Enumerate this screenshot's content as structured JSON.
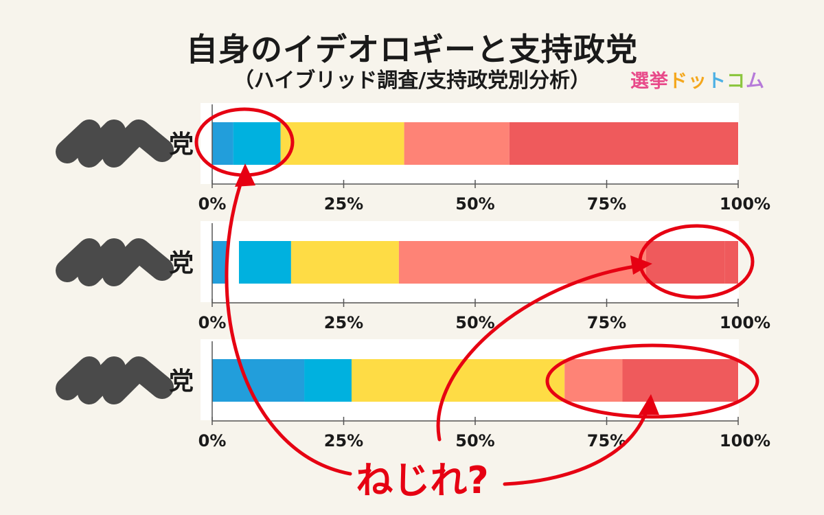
{
  "title": "自身のイデオロギーと支持政党",
  "subtitle": "（ハイブリッド調査/支持政党別分析）",
  "logo": {
    "text": "選挙ドットコム",
    "colors": [
      "#e84a8a",
      "#e84a8a",
      "#f4a71d",
      "#f4a71d",
      "#4cb0e4",
      "#8cc63f",
      "#b67ad9"
    ]
  },
  "callout": {
    "text": "ねじれ?",
    "color": "#e60012"
  },
  "colors": {
    "segments": [
      "#229edb",
      "#00b1df",
      "#fedc45",
      "#fe8376",
      "#ef5a5c"
    ],
    "label_mark": "#4a4a4a",
    "panel": "#ffffff",
    "axis": "#555555"
  },
  "chart_data": [
    {
      "type": "bar",
      "label": "党",
      "segments": [
        4,
        9,
        23.5,
        20,
        43.5
      ],
      "xlim": [
        0,
        100
      ],
      "tick_labels": [
        "0%",
        "25%",
        "50%",
        "75%",
        "100%"
      ]
    },
    {
      "type": "bar",
      "label": "党",
      "segments": [
        3,
        12,
        20.5,
        47,
        15,
        2.5
      ],
      "xlim": [
        0,
        100
      ],
      "tick_labels": [
        "0%",
        "25%",
        "50%",
        "75%",
        "100%"
      ]
    },
    {
      "type": "bar",
      "label": "党",
      "segments": [
        17.5,
        9,
        40.5,
        11,
        22
      ],
      "xlim": [
        0,
        100
      ],
      "tick_labels": [
        "0%",
        "25%",
        "50%",
        "75%",
        "100%"
      ]
    }
  ]
}
